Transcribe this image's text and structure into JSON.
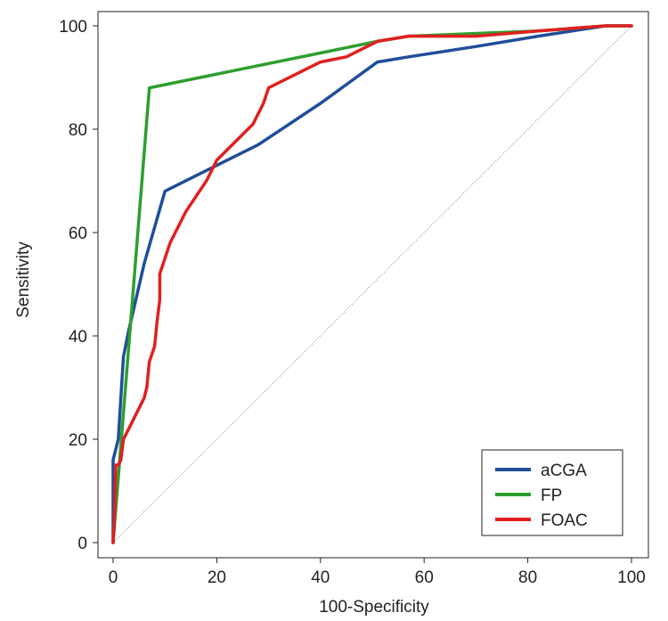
{
  "chart_data": {
    "type": "line",
    "title": "",
    "xlabel": "100-Specificity",
    "ylabel": "Sensitivity",
    "xlim": [
      0,
      100
    ],
    "ylim": [
      0,
      100
    ],
    "xticks": [
      0,
      20,
      40,
      60,
      80,
      100
    ],
    "yticks": [
      0,
      20,
      40,
      60,
      80,
      100
    ],
    "grid": false,
    "legend_position": "bottom-right",
    "reference_line": {
      "name": "diagonal",
      "x": [
        0,
        100
      ],
      "y": [
        0,
        100
      ],
      "color": "#aaaaaa"
    },
    "series": [
      {
        "name": "aCGA",
        "color": "#1f4e99",
        "x": [
          0,
          0,
          1,
          2,
          3,
          6,
          10,
          20,
          28,
          40,
          51,
          57,
          70,
          82,
          95,
          100
        ],
        "y": [
          0,
          16,
          20,
          36,
          41,
          54,
          68,
          73,
          77,
          85,
          93,
          94,
          96,
          98,
          100,
          100
        ]
      },
      {
        "name": "FP",
        "color": "#2e9e2e",
        "x": [
          0,
          7,
          51,
          57,
          82,
          95,
          100
        ],
        "y": [
          0,
          88,
          97,
          98,
          99,
          100,
          100
        ]
      },
      {
        "name": "FOAC",
        "color": "#e02020",
        "x": [
          0,
          0.3,
          0.5,
          1,
          1.5,
          2,
          2.5,
          3,
          4,
          5,
          6,
          6.5,
          7,
          8,
          8.5,
          9,
          9,
          10,
          11,
          12,
          14,
          16,
          18,
          20,
          27,
          29,
          30,
          40,
          45,
          51,
          57,
          70,
          82,
          95,
          100
        ],
        "y": [
          0,
          6,
          15,
          15,
          16,
          20,
          21,
          22,
          24,
          26,
          28,
          30,
          35,
          38,
          43,
          47,
          52,
          55,
          58,
          60,
          64,
          67,
          70,
          74,
          81,
          85,
          88,
          93,
          94,
          97,
          98,
          98,
          99,
          100,
          100
        ]
      }
    ]
  }
}
